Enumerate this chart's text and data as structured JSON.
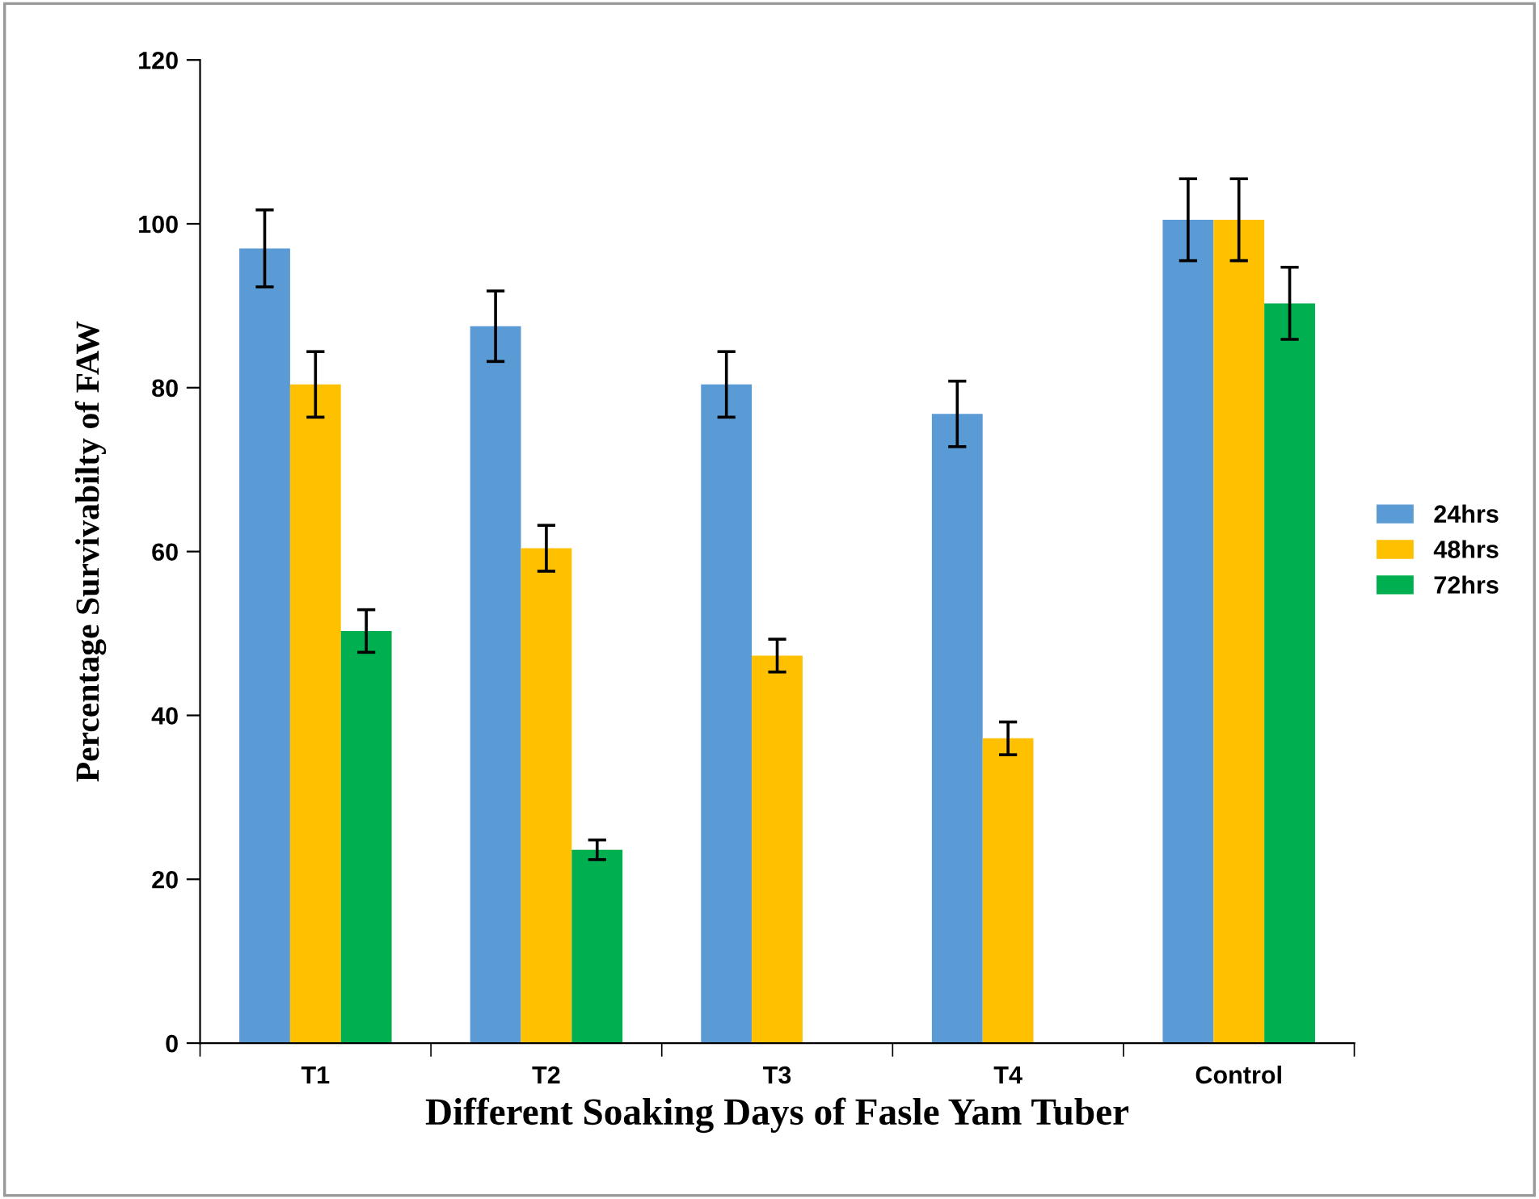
{
  "chart_data": {
    "type": "bar",
    "xlabel": "Different Soaking Days of Fasle Yam Tuber",
    "ylabel": "Percentage Survivabilty of FAW",
    "categories": [
      "T1",
      "T2",
      "T3",
      "T4",
      "Control"
    ],
    "series": [
      {
        "name": "24hrs",
        "color": "#5b9bd5",
        "values": [
          97,
          87.5,
          80.4,
          76.8,
          100.5
        ],
        "errors": [
          4.7,
          4.3,
          4,
          4,
          5
        ]
      },
      {
        "name": "48hrs",
        "color": "#ffc000",
        "values": [
          80.4,
          60.4,
          47.3,
          37.2,
          100.5
        ],
        "errors": [
          4,
          2.8,
          2,
          2,
          5
        ]
      },
      {
        "name": "72hrs",
        "color": "#00b050",
        "values": [
          50.3,
          23.6,
          null,
          null,
          90.3
        ],
        "errors": [
          2.6,
          1.2,
          null,
          null,
          4.4
        ]
      }
    ],
    "ylim": [
      0,
      120
    ],
    "yticks": [
      0,
      20,
      40,
      60,
      80,
      100,
      120
    ],
    "grid": false,
    "legend": "right"
  }
}
